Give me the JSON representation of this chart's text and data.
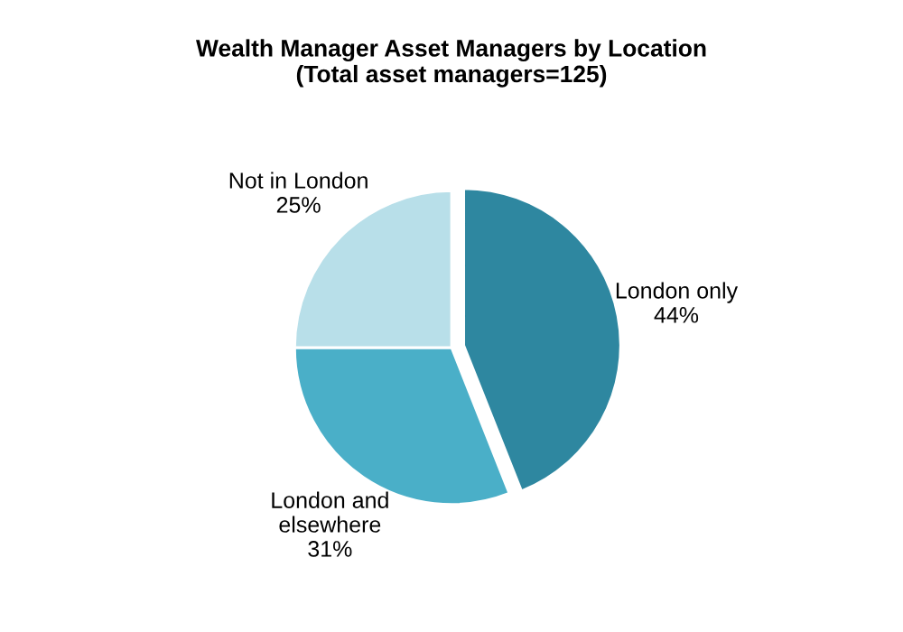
{
  "chart_data": {
    "type": "pie",
    "title": "Wealth Manager Asset Managers by Location\n(Total asset managers=125)",
    "categories": [
      "London only",
      "London and\nelsewhere",
      "Not in London"
    ],
    "values": [
      44,
      31,
      25
    ],
    "value_labels": [
      "44%",
      "31%",
      "25%"
    ],
    "colors": [
      "#2e87a0",
      "#4aafc8",
      "#b8dfe9"
    ]
  }
}
